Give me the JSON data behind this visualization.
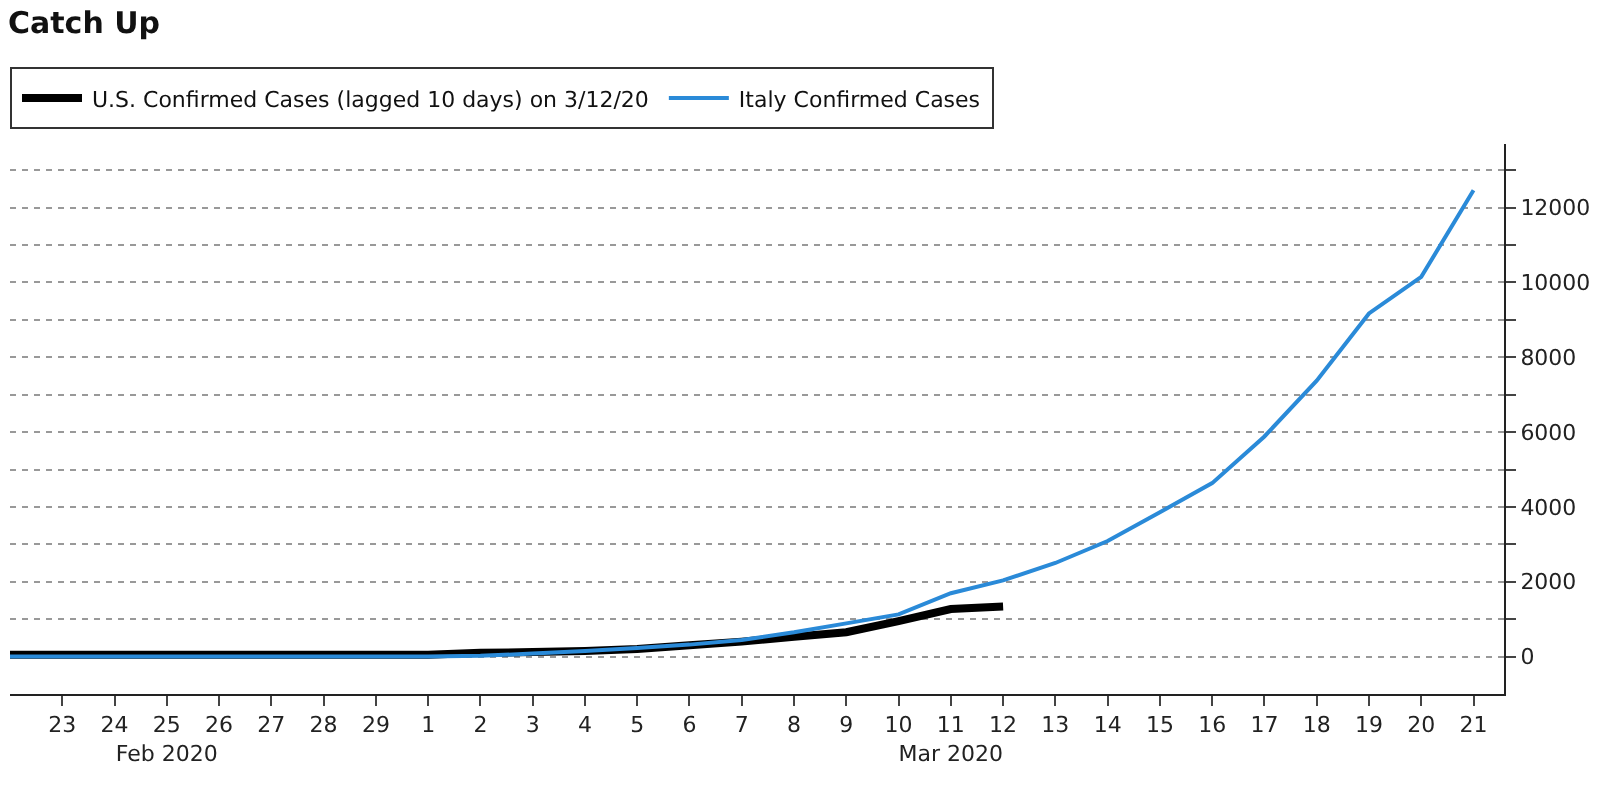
{
  "chart_data": {
    "type": "line",
    "title": "Catch Up",
    "x": [
      "2020-02-22",
      "2020-02-23",
      "2020-02-24",
      "2020-02-25",
      "2020-02-26",
      "2020-02-27",
      "2020-02-28",
      "2020-02-29",
      "2020-03-01",
      "2020-03-02",
      "2020-03-03",
      "2020-03-04",
      "2020-03-05",
      "2020-03-06",
      "2020-03-07",
      "2020-03-08",
      "2020-03-09",
      "2020-03-10",
      "2020-03-11",
      "2020-03-12",
      "2020-03-13",
      "2020-03-14",
      "2020-03-15",
      "2020-03-16",
      "2020-03-17",
      "2020-03-18",
      "2020-03-19",
      "2020-03-20",
      "2020-03-21"
    ],
    "series": [
      {
        "name": "U.S. Confirmed Cases (lagged 10 days) on 3/12/20",
        "color": "#000000",
        "values": [
          50,
          50,
          50,
          50,
          50,
          50,
          50,
          50,
          50,
          100,
          120,
          150,
          200,
          300,
          400,
          530,
          650,
          950,
          1270,
          1340,
          null,
          null,
          null,
          null,
          null,
          null,
          null,
          null,
          null
        ]
      },
      {
        "name": "Italy Confirmed Cases",
        "color": "#2a8ad8",
        "values": [
          0,
          0,
          0,
          0,
          0,
          0,
          0,
          0,
          0,
          20,
          79,
          150,
          227,
          320,
          445,
          650,
          888,
          1128,
          1694,
          2036,
          2502,
          3089,
          3858,
          4636,
          5883,
          7375,
          9172,
          10149,
          12462
        ]
      }
    ],
    "xlim": [
      "2020-02-22",
      "2020-03-21T14:00"
    ],
    "xticks": [
      {
        "value": "2020-02-23",
        "label": "23"
      },
      {
        "value": "2020-02-24",
        "label": "24"
      },
      {
        "value": "2020-02-25",
        "label": "25\nFeb 2020"
      },
      {
        "value": "2020-02-26",
        "label": "26"
      },
      {
        "value": "2020-02-27",
        "label": "27"
      },
      {
        "value": "2020-02-28",
        "label": "28"
      },
      {
        "value": "2020-02-29",
        "label": "29"
      },
      {
        "value": "2020-03-01",
        "label": "1"
      },
      {
        "value": "2020-03-02",
        "label": "2"
      },
      {
        "value": "2020-03-03",
        "label": "3"
      },
      {
        "value": "2020-03-04",
        "label": "4"
      },
      {
        "value": "2020-03-05",
        "label": "5"
      },
      {
        "value": "2020-03-06",
        "label": "6"
      },
      {
        "value": "2020-03-07",
        "label": "7"
      },
      {
        "value": "2020-03-08",
        "label": "8"
      },
      {
        "value": "2020-03-09",
        "label": "9"
      },
      {
        "value": "2020-03-10",
        "label": "10"
      },
      {
        "value": "2020-03-11",
        "label": "11\nMar 2020"
      },
      {
        "value": "2020-03-12",
        "label": "12"
      },
      {
        "value": "2020-03-13",
        "label": "13"
      },
      {
        "value": "2020-03-14",
        "label": "14"
      },
      {
        "value": "2020-03-15",
        "label": "15"
      },
      {
        "value": "2020-03-16",
        "label": "16"
      },
      {
        "value": "2020-03-17",
        "label": "17"
      },
      {
        "value": "2020-03-18",
        "label": "18"
      },
      {
        "value": "2020-03-19",
        "label": "19"
      },
      {
        "value": "2020-03-20",
        "label": "20"
      },
      {
        "value": "2020-03-21",
        "label": "21"
      }
    ],
    "ylim": [
      -1000,
      13700
    ],
    "yticks": [
      0,
      {
        "value": 1000,
        "label": null
      },
      2000,
      {
        "value": 3000,
        "label": null
      },
      4000,
      {
        "value": 5000,
        "label": null
      },
      6000,
      {
        "value": 7000,
        "label": null
      },
      8000,
      {
        "value": 9000,
        "label": null
      },
      10000,
      {
        "value": 11000,
        "label": null
      },
      12000,
      {
        "value": 13000,
        "label": null
      }
    ],
    "grid": "y",
    "legend": "top left",
    "marker": "none",
    "line_style": "solid"
  }
}
